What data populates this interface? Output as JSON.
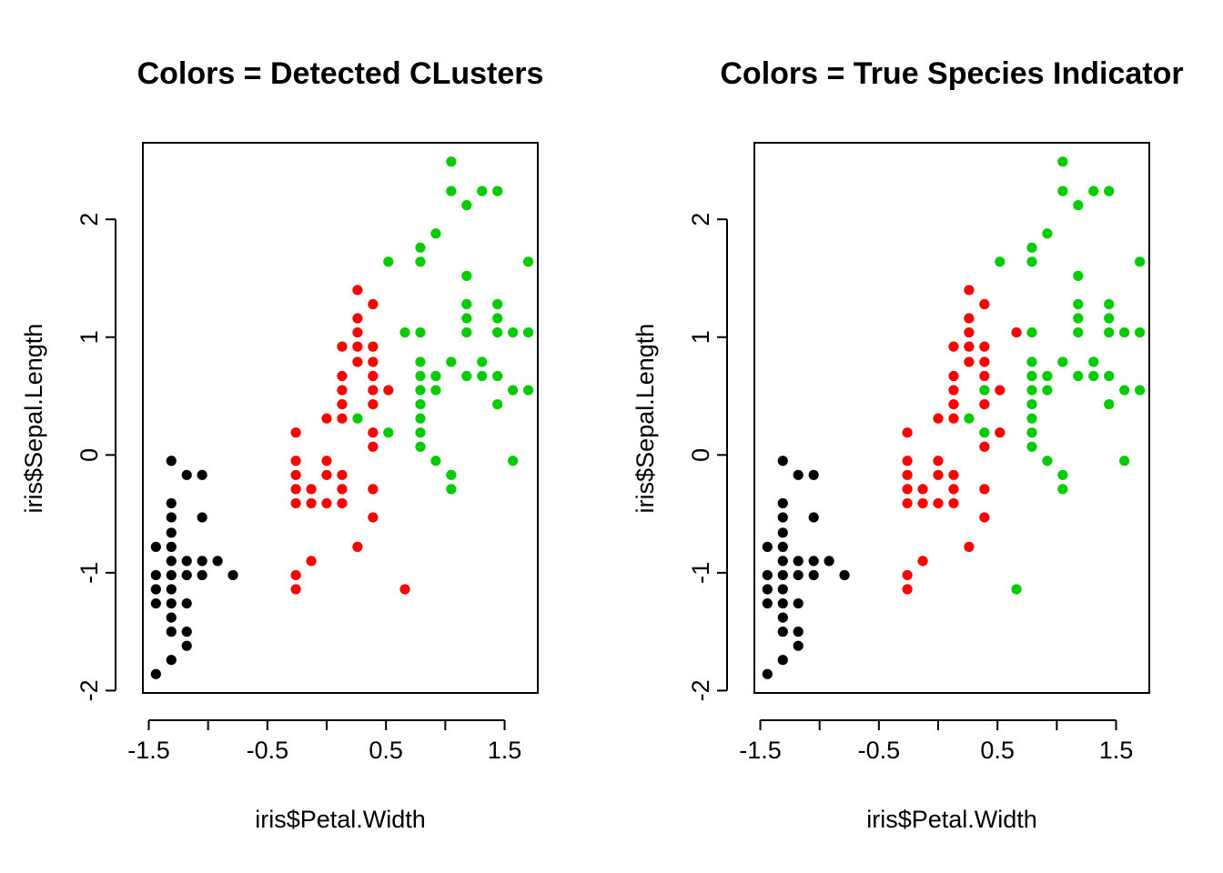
{
  "figure": {
    "background": "#ffffff"
  },
  "chart_data": [
    {
      "type": "scatter",
      "title": "Colors = Detected CLusters",
      "xlabel": "iris$Petal.Width",
      "ylabel": "iris$Sepal.Length",
      "xticks": [
        "-1.5",
        "-0.5",
        "0.5",
        "1.5"
      ],
      "yticks": [
        "-2",
        "-1",
        "0",
        "1",
        "2"
      ],
      "xlim": [
        -1.55,
        1.78
      ],
      "ylim": [
        -2.02,
        2.65
      ],
      "series": [
        {
          "color": "#000000",
          "points": [
            [
              -1.44,
              -1.86
            ],
            [
              -1.44,
              -0.78
            ],
            [
              -1.44,
              -1.02
            ],
            [
              -1.44,
              -1.14
            ],
            [
              -1.44,
              -1.26
            ],
            [
              -1.31,
              -0.05
            ],
            [
              -1.31,
              -0.41
            ],
            [
              -1.31,
              -0.53
            ],
            [
              -1.31,
              -0.66
            ],
            [
              -1.31,
              -0.78
            ],
            [
              -1.31,
              -0.9
            ],
            [
              -1.31,
              -1.02
            ],
            [
              -1.31,
              -1.14
            ],
            [
              -1.31,
              -1.26
            ],
            [
              -1.31,
              -1.38
            ],
            [
              -1.31,
              -1.5
            ],
            [
              -1.31,
              -1.74
            ],
            [
              -1.18,
              -0.17
            ],
            [
              -1.18,
              -0.9
            ],
            [
              -1.18,
              -1.02
            ],
            [
              -1.18,
              -1.26
            ],
            [
              -1.18,
              -1.5
            ],
            [
              -1.18,
              -1.62
            ],
            [
              -1.05,
              -0.17
            ],
            [
              -1.05,
              -0.53
            ],
            [
              -1.05,
              -0.9
            ],
            [
              -1.05,
              -1.02
            ],
            [
              -0.92,
              -0.9
            ],
            [
              -0.79,
              -1.02
            ]
          ]
        },
        {
          "color": "#ff0000",
          "points": [
            [
              -0.26,
              0.19
            ],
            [
              -0.26,
              -0.05
            ],
            [
              -0.26,
              -0.17
            ],
            [
              -0.26,
              -0.29
            ],
            [
              -0.26,
              -0.41
            ],
            [
              -0.26,
              -1.02
            ],
            [
              -0.26,
              -1.14
            ],
            [
              -0.13,
              -0.29
            ],
            [
              -0.13,
              -0.41
            ],
            [
              -0.13,
              -0.9
            ],
            [
              0.0,
              0.31
            ],
            [
              0.0,
              -0.05
            ],
            [
              0.0,
              -0.17
            ],
            [
              0.0,
              -0.41
            ],
            [
              0.13,
              0.92
            ],
            [
              0.13,
              0.67
            ],
            [
              0.13,
              0.55
            ],
            [
              0.13,
              0.43
            ],
            [
              0.13,
              0.31
            ],
            [
              0.13,
              -0.17
            ],
            [
              0.13,
              -0.29
            ],
            [
              0.13,
              -0.41
            ],
            [
              0.26,
              1.4
            ],
            [
              0.26,
              1.16
            ],
            [
              0.26,
              1.04
            ],
            [
              0.26,
              0.92
            ],
            [
              0.26,
              0.79
            ],
            [
              0.26,
              -0.78
            ],
            [
              0.39,
              1.28
            ],
            [
              0.39,
              0.92
            ],
            [
              0.39,
              0.79
            ],
            [
              0.39,
              0.67
            ],
            [
              0.39,
              0.55
            ],
            [
              0.39,
              0.43
            ],
            [
              0.39,
              0.19
            ],
            [
              0.39,
              0.07
            ],
            [
              0.39,
              -0.29
            ],
            [
              0.39,
              -0.53
            ],
            [
              0.52,
              0.55
            ],
            [
              0.66,
              -1.14
            ]
          ]
        },
        {
          "color": "#00cc00",
          "points": [
            [
              0.26,
              0.31
            ],
            [
              0.52,
              1.64
            ],
            [
              0.52,
              0.19
            ],
            [
              0.66,
              1.04
            ],
            [
              0.79,
              1.76
            ],
            [
              0.79,
              1.64
            ],
            [
              0.79,
              1.04
            ],
            [
              0.79,
              0.79
            ],
            [
              0.79,
              0.67
            ],
            [
              0.79,
              0.55
            ],
            [
              0.79,
              0.43
            ],
            [
              0.79,
              0.31
            ],
            [
              0.79,
              0.19
            ],
            [
              0.79,
              0.07
            ],
            [
              0.92,
              1.88
            ],
            [
              0.92,
              0.67
            ],
            [
              0.92,
              0.55
            ],
            [
              0.92,
              -0.05
            ],
            [
              1.05,
              2.49
            ],
            [
              1.05,
              2.24
            ],
            [
              1.05,
              0.79
            ],
            [
              1.05,
              -0.17
            ],
            [
              1.05,
              -0.29
            ],
            [
              1.18,
              2.12
            ],
            [
              1.18,
              1.52
            ],
            [
              1.18,
              1.28
            ],
            [
              1.18,
              1.16
            ],
            [
              1.18,
              1.04
            ],
            [
              1.18,
              0.67
            ],
            [
              1.31,
              2.24
            ],
            [
              1.31,
              0.79
            ],
            [
              1.31,
              0.67
            ],
            [
              1.44,
              2.24
            ],
            [
              1.44,
              1.28
            ],
            [
              1.44,
              1.16
            ],
            [
              1.44,
              1.04
            ],
            [
              1.44,
              0.67
            ],
            [
              1.44,
              0.43
            ],
            [
              1.57,
              1.04
            ],
            [
              1.57,
              0.55
            ],
            [
              1.57,
              -0.05
            ],
            [
              1.7,
              1.64
            ],
            [
              1.7,
              1.04
            ],
            [
              1.7,
              0.55
            ]
          ]
        }
      ]
    },
    {
      "type": "scatter",
      "title": "Colors = True Species Indicator",
      "xlabel": "iris$Petal.Width",
      "ylabel": "iris$Sepal.Length",
      "xticks": [
        "-1.5",
        "-0.5",
        "0.5",
        "1.5"
      ],
      "yticks": [
        "-2",
        "-1",
        "0",
        "1",
        "2"
      ],
      "xlim": [
        -1.55,
        1.78
      ],
      "ylim": [
        -2.02,
        2.65
      ],
      "series": [
        {
          "color": "#000000",
          "points": [
            [
              -1.44,
              -1.86
            ],
            [
              -1.44,
              -0.78
            ],
            [
              -1.44,
              -1.02
            ],
            [
              -1.44,
              -1.14
            ],
            [
              -1.44,
              -1.26
            ],
            [
              -1.31,
              -0.05
            ],
            [
              -1.31,
              -0.41
            ],
            [
              -1.31,
              -0.53
            ],
            [
              -1.31,
              -0.66
            ],
            [
              -1.31,
              -0.78
            ],
            [
              -1.31,
              -0.9
            ],
            [
              -1.31,
              -1.02
            ],
            [
              -1.31,
              -1.14
            ],
            [
              -1.31,
              -1.26
            ],
            [
              -1.31,
              -1.38
            ],
            [
              -1.31,
              -1.5
            ],
            [
              -1.31,
              -1.74
            ],
            [
              -1.18,
              -0.17
            ],
            [
              -1.18,
              -0.9
            ],
            [
              -1.18,
              -1.02
            ],
            [
              -1.18,
              -1.26
            ],
            [
              -1.18,
              -1.5
            ],
            [
              -1.18,
              -1.62
            ],
            [
              -1.05,
              -0.17
            ],
            [
              -1.05,
              -0.53
            ],
            [
              -1.05,
              -0.9
            ],
            [
              -1.05,
              -1.02
            ],
            [
              -0.92,
              -0.9
            ],
            [
              -0.79,
              -1.02
            ]
          ]
        },
        {
          "color": "#ff0000",
          "points": [
            [
              -0.26,
              0.19
            ],
            [
              -0.26,
              -0.05
            ],
            [
              -0.26,
              -0.17
            ],
            [
              -0.26,
              -0.29
            ],
            [
              -0.26,
              -0.41
            ],
            [
              -0.26,
              -1.02
            ],
            [
              -0.26,
              -1.14
            ],
            [
              -0.13,
              -0.29
            ],
            [
              -0.13,
              -0.41
            ],
            [
              -0.13,
              -0.9
            ],
            [
              0.0,
              0.31
            ],
            [
              0.0,
              -0.05
            ],
            [
              0.0,
              -0.17
            ],
            [
              0.0,
              -0.41
            ],
            [
              0.13,
              0.92
            ],
            [
              0.13,
              0.67
            ],
            [
              0.13,
              0.55
            ],
            [
              0.13,
              0.43
            ],
            [
              0.13,
              0.31
            ],
            [
              0.13,
              -0.17
            ],
            [
              0.13,
              -0.29
            ],
            [
              0.13,
              -0.41
            ],
            [
              0.26,
              1.4
            ],
            [
              0.26,
              1.16
            ],
            [
              0.26,
              1.04
            ],
            [
              0.26,
              0.92
            ],
            [
              0.26,
              0.79
            ],
            [
              0.26,
              -0.78
            ],
            [
              0.39,
              1.28
            ],
            [
              0.39,
              0.92
            ],
            [
              0.39,
              0.79
            ],
            [
              0.39,
              0.67
            ],
            [
              0.39,
              0.43
            ],
            [
              0.39,
              0.07
            ],
            [
              0.39,
              -0.29
            ],
            [
              0.39,
              -0.53
            ],
            [
              0.52,
              0.55
            ],
            [
              0.52,
              0.19
            ],
            [
              0.66,
              1.04
            ]
          ]
        },
        {
          "color": "#00cc00",
          "points": [
            [
              0.26,
              0.31
            ],
            [
              0.39,
              0.55
            ],
            [
              0.39,
              0.19
            ],
            [
              0.52,
              1.64
            ],
            [
              0.66,
              -1.14
            ],
            [
              0.79,
              1.76
            ],
            [
              0.79,
              1.64
            ],
            [
              0.79,
              1.04
            ],
            [
              0.79,
              0.79
            ],
            [
              0.79,
              0.67
            ],
            [
              0.79,
              0.55
            ],
            [
              0.79,
              0.43
            ],
            [
              0.79,
              0.31
            ],
            [
              0.79,
              0.19
            ],
            [
              0.79,
              0.07
            ],
            [
              0.92,
              1.88
            ],
            [
              0.92,
              0.67
            ],
            [
              0.92,
              0.55
            ],
            [
              0.92,
              -0.05
            ],
            [
              1.05,
              2.49
            ],
            [
              1.05,
              2.24
            ],
            [
              1.05,
              0.79
            ],
            [
              1.05,
              -0.17
            ],
            [
              1.05,
              -0.29
            ],
            [
              1.18,
              2.12
            ],
            [
              1.18,
              1.52
            ],
            [
              1.18,
              1.28
            ],
            [
              1.18,
              1.16
            ],
            [
              1.18,
              1.04
            ],
            [
              1.18,
              0.67
            ],
            [
              1.31,
              2.24
            ],
            [
              1.31,
              0.79
            ],
            [
              1.31,
              0.67
            ],
            [
              1.44,
              2.24
            ],
            [
              1.44,
              1.28
            ],
            [
              1.44,
              1.16
            ],
            [
              1.44,
              1.04
            ],
            [
              1.44,
              0.67
            ],
            [
              1.44,
              0.43
            ],
            [
              1.57,
              1.04
            ],
            [
              1.57,
              0.55
            ],
            [
              1.57,
              -0.05
            ],
            [
              1.7,
              1.64
            ],
            [
              1.7,
              1.04
            ],
            [
              1.7,
              0.55
            ]
          ]
        }
      ]
    }
  ]
}
